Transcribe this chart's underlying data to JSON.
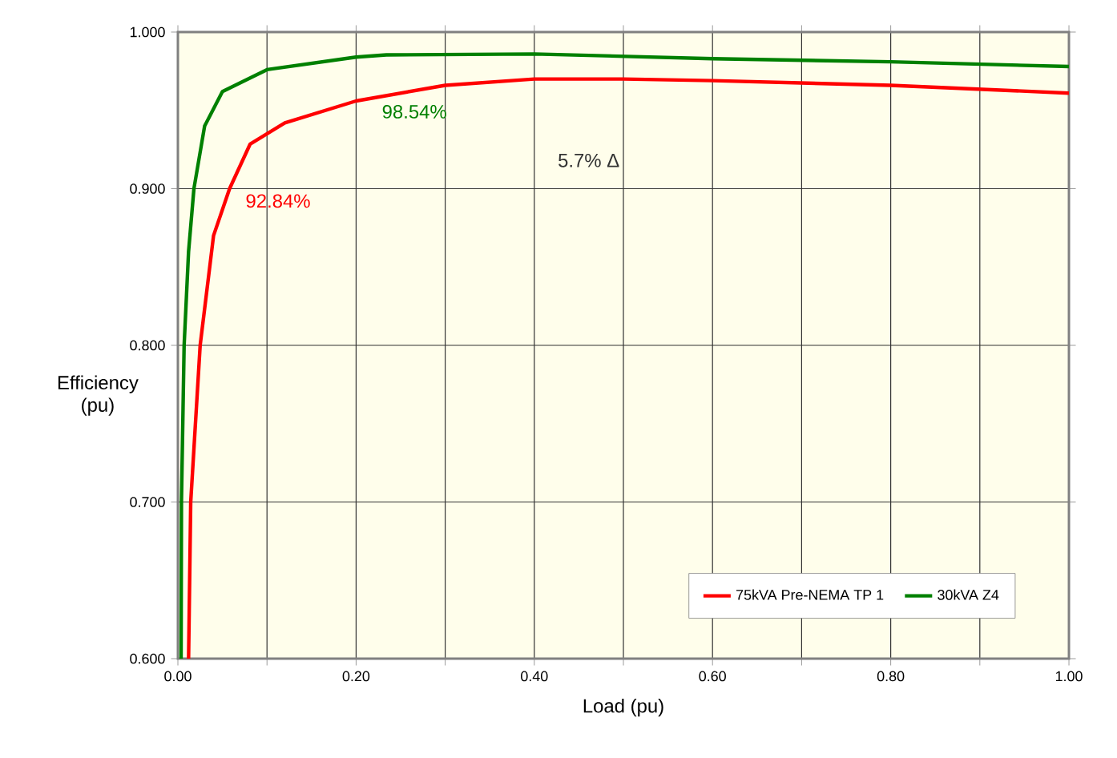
{
  "chart_data": {
    "type": "line",
    "xlabel": "Load (pu)",
    "ylabel": "Efficiency (pu)",
    "xlim": [
      0,
      1
    ],
    "ylim": [
      0.6,
      1.0
    ],
    "xticks": [
      {
        "value": 0,
        "label": "0.00"
      },
      {
        "value": 0.1,
        "label": null
      },
      {
        "value": 0.2,
        "label": "0.20"
      },
      {
        "value": 0.3,
        "label": null
      },
      {
        "value": 0.4,
        "label": "0.40"
      },
      {
        "value": 0.5,
        "label": null
      },
      {
        "value": 0.6,
        "label": "0.60"
      },
      {
        "value": 0.7,
        "label": null
      },
      {
        "value": 0.8,
        "label": "0.80"
      },
      {
        "value": 0.9,
        "label": null
      },
      {
        "value": 1.0,
        "label": "1.00"
      }
    ],
    "yticks": [
      {
        "value": 0.6,
        "label": "0.600"
      },
      {
        "value": 0.7,
        "label": "0.700"
      },
      {
        "value": 0.8,
        "label": "0.800"
      },
      {
        "value": 0.9,
        "label": "0.900"
      },
      {
        "value": 1.0,
        "label": "1.000"
      }
    ],
    "grid": true,
    "legend": "bottom right",
    "line_style": "solid",
    "series": [
      {
        "name": "75kVA Pre-NEMA TP 1",
        "color": "#ff0000",
        "x": [
          0.012,
          0.0144,
          0.025,
          0.04,
          0.058,
          0.081,
          0.12,
          0.2,
          0.3,
          0.4,
          0.5,
          0.6,
          0.8,
          1.0
        ],
        "values": [
          0.6,
          0.7,
          0.8,
          0.87,
          0.9,
          0.9284,
          0.942,
          0.956,
          0.966,
          0.97,
          0.97,
          0.969,
          0.966,
          0.961
        ]
      },
      {
        "name": "30kVA Z4",
        "color": "#008000",
        "x": [
          0.0036,
          0.004,
          0.007,
          0.012,
          0.018,
          0.03,
          0.05,
          0.1,
          0.2,
          0.234,
          0.4,
          0.6,
          0.8,
          1.0
        ],
        "values": [
          0.6,
          0.7,
          0.8,
          0.86,
          0.9,
          0.94,
          0.962,
          0.976,
          0.984,
          0.9854,
          0.986,
          0.983,
          0.981,
          0.978
        ]
      }
    ],
    "annotations": [
      {
        "text": "92.84%",
        "x": 0.081,
        "y": 0.9284
      },
      {
        "text": "98.54%",
        "x": 0.234,
        "y": 0.9854
      },
      "5.7% Δ"
    ]
  }
}
